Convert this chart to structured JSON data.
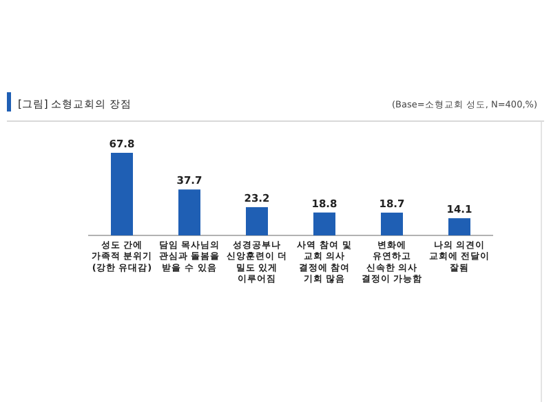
{
  "chart_data": {
    "type": "bar",
    "title": "[그림] 소형교회의 장점",
    "subtitle": "(Base=소형교회 성도, N=400,%)",
    "categories": [
      "성도 간에 가족적 분위기 (강한 유대감)",
      "담임 목사님의 관심과 돌봄을 받을 수 있음",
      "성경공부나 신앙훈련이 더 밀도 있게 이루어짐",
      "사역 참여 및 교회 의사 결정에 참여 기회 많음",
      "변화에 유연하고 신속한 의사 결정이 가능함",
      "나의 의견이 교회에 전달이 잘됨"
    ],
    "values": [
      67.8,
      37.7,
      23.2,
      18.8,
      18.7,
      14.1
    ],
    "color": "#1f5fb4",
    "data_labels": true,
    "relative": false
  }
}
